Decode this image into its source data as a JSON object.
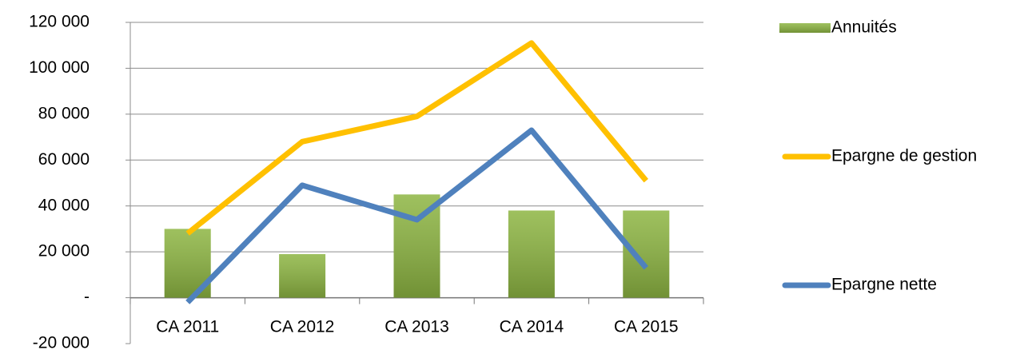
{
  "chart_data": {
    "type": "bar_line",
    "categories": [
      "CA 2011",
      "CA 2012",
      "CA 2013",
      "CA 2014",
      "CA 2015"
    ],
    "series": [
      {
        "name": "Annuités",
        "type": "bar",
        "color": "#8db542",
        "values": [
          30000,
          19000,
          45000,
          38000,
          38000
        ]
      },
      {
        "name": "Epargne de gestion",
        "type": "line",
        "color": "#ffc000",
        "values": [
          28000,
          68000,
          79000,
          111000,
          51000
        ]
      },
      {
        "name": "Epargne nette",
        "type": "line",
        "color": "#4f81bd",
        "values": [
          -2000,
          49000,
          34000,
          73000,
          13000
        ]
      }
    ],
    "ylim": [
      -20000,
      120000
    ],
    "yticks": [
      {
        "value": -20000,
        "label": "-20 000"
      },
      {
        "value": 0,
        "label": "-"
      },
      {
        "value": 20000,
        "label": "20 000"
      },
      {
        "value": 40000,
        "label": "40 000"
      },
      {
        "value": 60000,
        "label": "60 000"
      },
      {
        "value": 80000,
        "label": "80 000"
      },
      {
        "value": 100000,
        "label": "100 000"
      },
      {
        "value": 120000,
        "label": "120 000"
      }
    ],
    "grid": true,
    "legend": "right"
  }
}
